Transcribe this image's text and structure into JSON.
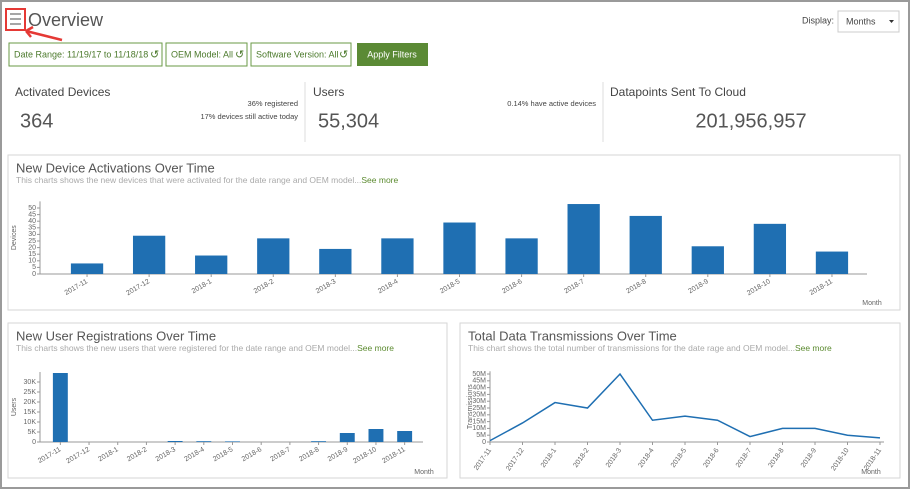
{
  "header": {
    "title": "Overview",
    "display_label": "Display:",
    "display_value": "Months"
  },
  "filters": {
    "items": [
      "Date Range: 11/19/17 to 11/18/18",
      "OEM Model: All",
      "Software Version: All"
    ],
    "apply": "Apply Filters"
  },
  "stats": [
    {
      "title": "Activated Devices",
      "value": "364",
      "notes": [
        "36% registered",
        "17% devices still active today"
      ]
    },
    {
      "title": "Users",
      "value": "55,304",
      "notes": [
        "0.14% have active devices"
      ]
    },
    {
      "title": "Datapoints Sent To Cloud",
      "value": "201,956,957",
      "notes": []
    }
  ],
  "chart_data": [
    {
      "type": "bar",
      "title": "New Device Activations Over Time",
      "subtitle": "This charts shows the new devices that were activated for the date range and OEM model...",
      "link": "See more",
      "ylabel": "Devices",
      "xlabel": "Month",
      "color": "#1f6fb2",
      "categories": [
        "2017-11",
        "2017-12",
        "2018-1",
        "2018-2",
        "2018-3",
        "2018-4",
        "2018-5",
        "2018-6",
        "2018-7",
        "2018-8",
        "2018-9",
        "2018-10",
        "2018-11"
      ],
      "values": [
        8,
        29,
        14,
        27,
        19,
        27,
        39,
        27,
        53,
        44,
        21,
        38,
        17
      ],
      "ylim": [
        0,
        55
      ],
      "yticks": [
        0,
        5,
        10,
        15,
        20,
        25,
        30,
        35,
        40,
        45,
        50
      ]
    },
    {
      "type": "bar",
      "title": "New User Registrations Over Time",
      "subtitle": "This charts shows the new users that were registered for the date range and OEM model...",
      "link": "See more",
      "ylabel": "Users",
      "xlabel": "Month",
      "color": "#1f6fb2",
      "categories": [
        "2017-11",
        "2017-12",
        "2018-1",
        "2018-2",
        "2018-3",
        "2018-4",
        "2018-5",
        "2018-6",
        "2018-7",
        "2018-8",
        "2018-9",
        "2018-10",
        "2018-11"
      ],
      "values": [
        34500,
        0,
        0,
        0,
        500,
        400,
        300,
        0,
        0,
        400,
        4500,
        6500,
        5500
      ],
      "ylim": [
        0,
        35000
      ],
      "yticks": [
        0,
        {
          "value": 5000,
          "label": "5K"
        },
        {
          "value": 10000,
          "label": "10K"
        },
        {
          "value": 15000,
          "label": "15K"
        },
        {
          "value": 20000,
          "label": "20K"
        },
        {
          "value": 25000,
          "label": "25K"
        },
        {
          "value": 30000,
          "label": "30K"
        }
      ]
    },
    {
      "type": "line",
      "title": "Total Data Transmissions Over Time",
      "subtitle": "This chart shows the total number of transmissions for the date rage and OEM model...",
      "link": "See more",
      "ylabel": "Transmissions",
      "xlabel": "Month",
      "color": "#1f6fb2",
      "categories": [
        "2017-11",
        "2017-12",
        "2018-1",
        "2018-2",
        "2018-3",
        "2018-4",
        "2018-5",
        "2018-6",
        "2018-7",
        "2018-8",
        "2018-9",
        "2018-10",
        "2018-11"
      ],
      "values": [
        1000000,
        14000000,
        29000000,
        25000000,
        50000000,
        16000000,
        19000000,
        16000000,
        4000000,
        10000000,
        10000000,
        5000000,
        3000000
      ],
      "ylim": [
        0,
        52000000
      ],
      "yticks": [
        0,
        {
          "value": 5000000,
          "label": "5M"
        },
        {
          "value": 10000000,
          "label": "10M"
        },
        {
          "value": 15000000,
          "label": "15M"
        },
        {
          "value": 20000000,
          "label": "20M"
        },
        {
          "value": 25000000,
          "label": "25M"
        },
        {
          "value": 30000000,
          "label": "30M"
        },
        {
          "value": 35000000,
          "label": "35M"
        },
        {
          "value": 40000000,
          "label": "40M"
        },
        {
          "value": 45000000,
          "label": "45M"
        },
        {
          "value": 50000000,
          "label": "50M"
        }
      ]
    }
  ]
}
